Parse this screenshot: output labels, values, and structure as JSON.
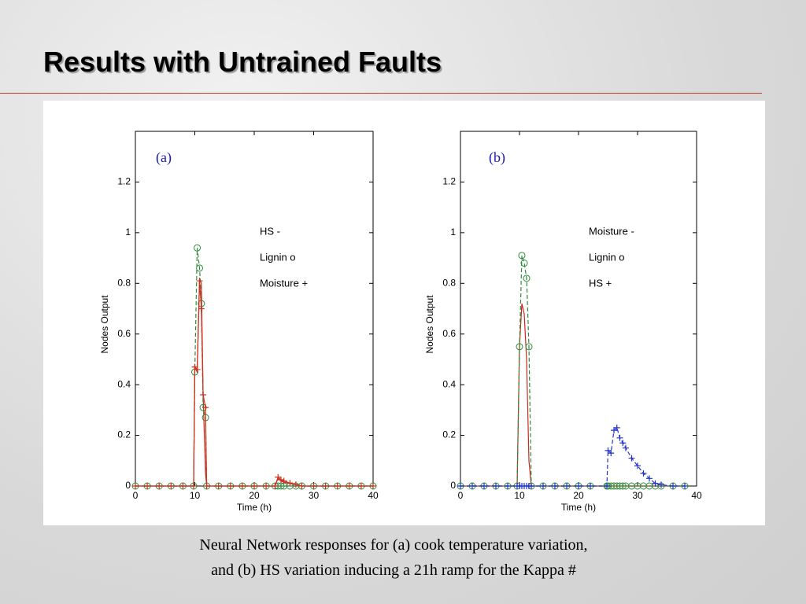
{
  "slide_title": "Results with Untrained Faults",
  "caption": [
    "Neural Network responses for (a) cook temperature variation,",
    "and (b) HS variation inducing a 21h ramp for the Kappa #"
  ],
  "chart_data": [
    {
      "type": "line",
      "panel_label": "(a)",
      "panel_label_color": "#1a1ab0",
      "x_label": "Time (h)",
      "y_label": "Nodes Output",
      "xlim": [
        0,
        40
      ],
      "ylim": [
        0,
        1.4
      ],
      "xticks": [
        0,
        10,
        20,
        30,
        40
      ],
      "yticks": [
        0,
        0.2,
        0.4,
        0.6,
        0.8,
        1,
        1.2
      ],
      "legend": "upper right",
      "x": [
        0,
        2,
        4,
        6,
        8,
        9.8,
        10,
        10.4,
        10.8,
        11.1,
        11.4,
        11.8,
        12,
        14,
        16,
        18,
        20,
        22,
        23.5,
        24,
        24.5,
        25,
        26,
        27,
        28,
        30,
        32,
        34,
        36,
        38,
        40
      ],
      "series": [
        {
          "name": "HS  -",
          "color": "#c8281e",
          "marker": "none",
          "dashed": false,
          "values": [
            0,
            0,
            0,
            0,
            0,
            0,
            0.47,
            0.45,
            0.82,
            0.8,
            0.36,
            0.05,
            0,
            0,
            0,
            0,
            0,
            0,
            0,
            0.03,
            0.02,
            0.015,
            0.01,
            0.005,
            0,
            0,
            0,
            0,
            0,
            0,
            0
          ]
        },
        {
          "name": "Lignin o",
          "color": "#2e8b3a",
          "marker": "circle",
          "dashed": true,
          "values": [
            0,
            0,
            0,
            0,
            0,
            0,
            0.45,
            0.94,
            0.86,
            0.72,
            0.31,
            0.27,
            0,
            0,
            0,
            0,
            0,
            0,
            0,
            0,
            0,
            0,
            0,
            0,
            0,
            0,
            0,
            0,
            0,
            0,
            0
          ]
        },
        {
          "name": "Moisture +",
          "color": "#d03020",
          "marker": "plus",
          "dashed": false,
          "values": [
            0,
            0,
            0,
            0,
            0,
            0,
            0.47,
            0.46,
            0.81,
            0.7,
            0.36,
            0.31,
            0,
            0,
            0,
            0,
            0,
            0,
            0,
            0.035,
            0.025,
            0.02,
            0.012,
            0.006,
            0,
            0,
            0,
            0,
            0,
            0,
            0
          ]
        }
      ]
    },
    {
      "type": "line",
      "panel_label": "(b)",
      "panel_label_color": "#1a1ab0",
      "x_label": "Time (h)",
      "y_label": "Nodes Output",
      "xlim": [
        0,
        40
      ],
      "ylim": [
        0,
        1.4
      ],
      "xticks": [
        0,
        10,
        20,
        30,
        40
      ],
      "yticks": [
        0,
        0.2,
        0.4,
        0.6,
        0.8,
        1,
        1.2
      ],
      "legend": "upper right",
      "x": [
        0,
        2,
        4,
        6,
        8,
        9.6,
        10,
        10.4,
        10.8,
        11.2,
        11.6,
        12,
        14,
        16,
        18,
        20,
        22,
        24.8,
        25,
        25.5,
        26,
        26.5,
        27,
        27.5,
        28,
        29,
        30,
        31,
        32,
        33,
        34,
        36,
        38
      ],
      "series": [
        {
          "name": "Moisture  -",
          "color": "#c8281e",
          "marker": "none",
          "dashed": false,
          "values": [
            0,
            0,
            0,
            0,
            0,
            0,
            0.55,
            0.72,
            0.68,
            0.5,
            0.1,
            0,
            0,
            0,
            0,
            0,
            0,
            0,
            0,
            0,
            0,
            0,
            0,
            0,
            0,
            0,
            0,
            0,
            0,
            0,
            0,
            0,
            0
          ]
        },
        {
          "name": "Lignin o",
          "color": "#2e8b3a",
          "marker": "circle",
          "dashed": true,
          "values": [
            0,
            0,
            0,
            0,
            0,
            0,
            0.55,
            0.91,
            0.88,
            0.82,
            0.55,
            0,
            0,
            0,
            0,
            0,
            0,
            0,
            0,
            0,
            0,
            0,
            0,
            0,
            0,
            0,
            0,
            0,
            0,
            0,
            0,
            0,
            0
          ]
        },
        {
          "name": "HS +",
          "color": "#2233cc",
          "marker": "plus",
          "dashed": true,
          "values": [
            0,
            0,
            0,
            0,
            0,
            0,
            0,
            0,
            0,
            0,
            0,
            0,
            0,
            0,
            0,
            0,
            0,
            0,
            0.14,
            0.13,
            0.22,
            0.23,
            0.19,
            0.17,
            0.15,
            0.11,
            0.08,
            0.05,
            0.03,
            0.01,
            0.005,
            0,
            0
          ]
        }
      ]
    }
  ]
}
